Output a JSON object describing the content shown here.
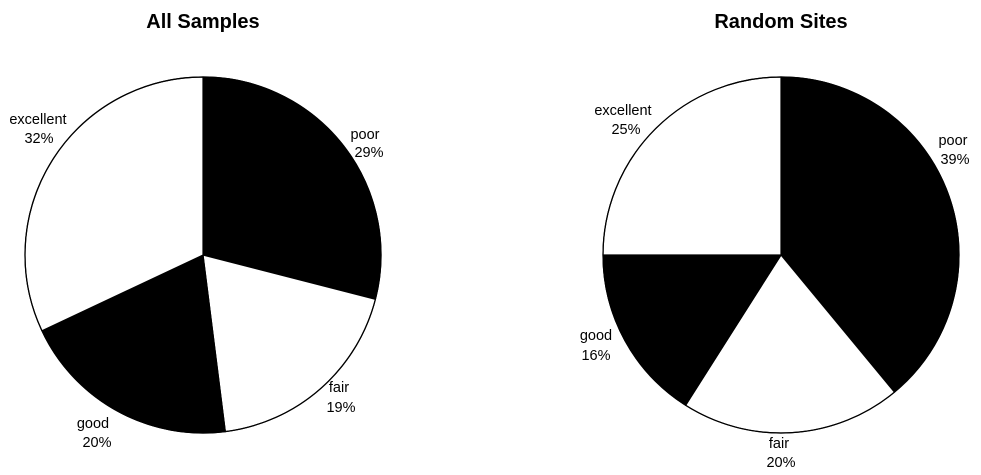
{
  "chart_data": [
    {
      "type": "pie",
      "title": "All Samples",
      "start_angle_deg": 0,
      "direction": "clockwise",
      "slices": [
        {
          "label": "poor",
          "value": 29,
          "value_label": "29%",
          "color": "#000000"
        },
        {
          "label": "fair",
          "value": 19,
          "value_label": "19%",
          "color": "#ffffff"
        },
        {
          "label": "good",
          "value": 20,
          "value_label": "20%",
          "color": "#000000"
        },
        {
          "label": "excellent",
          "value": 32,
          "value_label": "32%",
          "color": "#ffffff"
        }
      ]
    },
    {
      "type": "pie",
      "title": "Random Sites",
      "start_angle_deg": 0,
      "direction": "clockwise",
      "slices": [
        {
          "label": "poor",
          "value": 39,
          "value_label": "39%",
          "color": "#000000"
        },
        {
          "label": "fair",
          "value": 20,
          "value_label": "20%",
          "color": "#ffffff"
        },
        {
          "label": "good",
          "value": 16,
          "value_label": "16%",
          "color": "#000000"
        },
        {
          "label": "excellent",
          "value": 25,
          "value_label": "25%",
          "color": "#ffffff"
        }
      ]
    }
  ]
}
